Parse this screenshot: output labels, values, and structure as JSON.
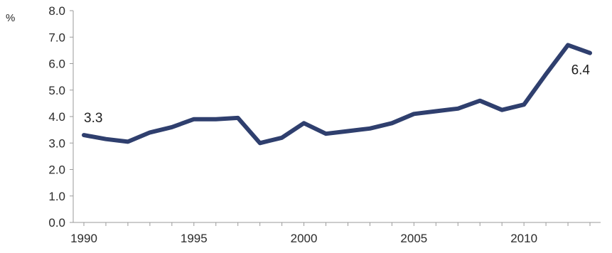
{
  "chart_data": {
    "type": "line",
    "title": "",
    "xlabel": "",
    "ylabel": "%",
    "xlim": [
      1990,
      2013
    ],
    "ylim": [
      0,
      8
    ],
    "y_ticks": [
      "0.0",
      "1.0",
      "2.0",
      "3.0",
      "4.0",
      "5.0",
      "6.0",
      "7.0",
      "8.0"
    ],
    "x_ticks": [
      "1990",
      "1995",
      "2000",
      "2005",
      "2010"
    ],
    "grid": false,
    "legend": "none",
    "series": [
      {
        "color": "#2f3f6e",
        "x": [
          1990,
          1991,
          1992,
          1993,
          1994,
          1995,
          1996,
          1997,
          1998,
          1999,
          2000,
          2001,
          2002,
          2003,
          2004,
          2005,
          2006,
          2007,
          2008,
          2009,
          2010,
          2011,
          2012,
          2013
        ],
        "values": [
          3.3,
          3.15,
          3.05,
          3.4,
          3.6,
          3.9,
          3.9,
          3.95,
          3.0,
          3.2,
          3.75,
          3.35,
          3.45,
          3.55,
          3.75,
          4.1,
          4.2,
          4.3,
          4.6,
          4.25,
          4.45,
          5.6,
          6.7,
          6.4
        ]
      }
    ],
    "annotations": [
      {
        "text": "3.3",
        "x": 1990,
        "y": 3.3
      },
      {
        "text": "6.4",
        "x": 2013,
        "y": 6.4
      }
    ]
  }
}
